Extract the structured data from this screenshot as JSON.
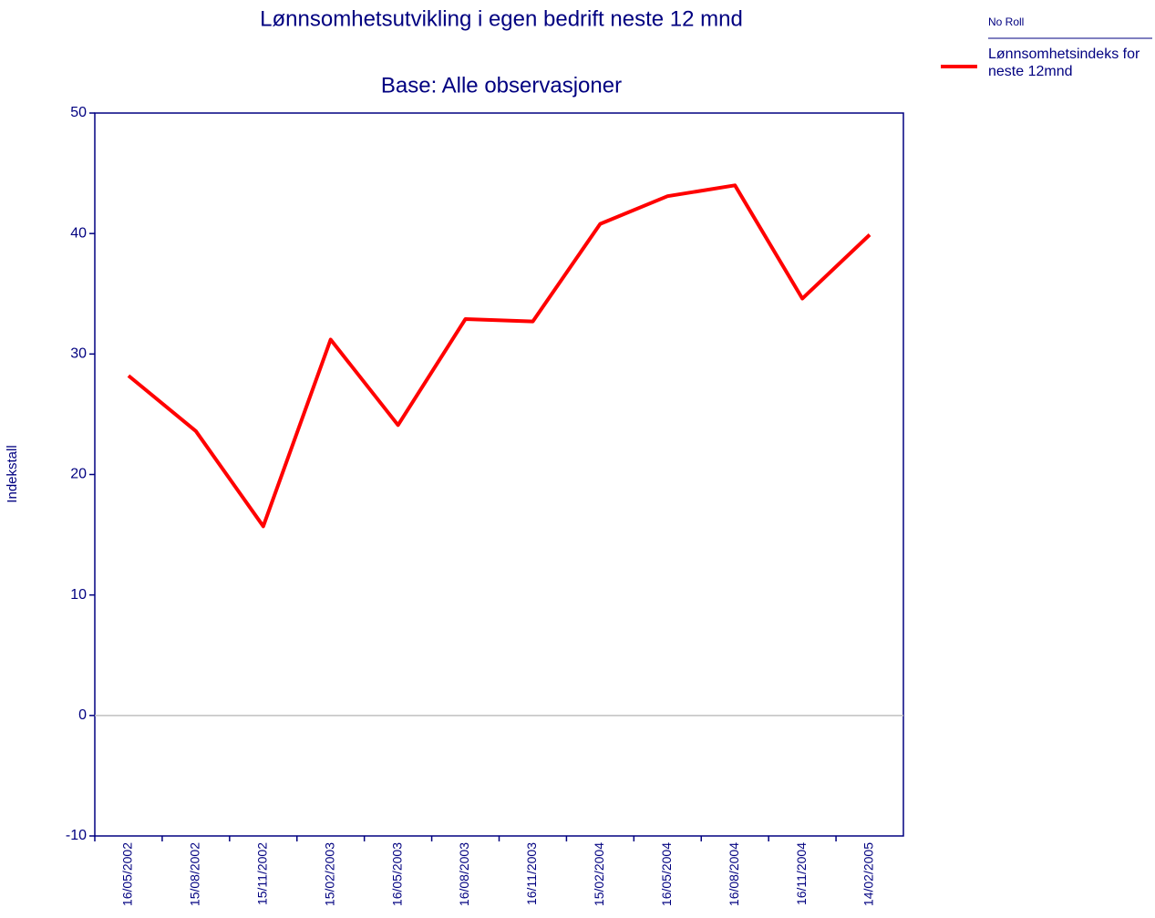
{
  "chart_data": {
    "type": "line",
    "title": "Lønnsomhetsutvikling i egen bedrift neste 12 mnd",
    "subtitle": "Base: Alle observasjoner",
    "y_label": "Indekstall",
    "legend_title": "No Roll",
    "categories": [
      "16/05/2002",
      "15/08/2002",
      "15/11/2002",
      "15/02/2003",
      "16/05/2003",
      "16/08/2003",
      "16/11/2003",
      "15/02/2004",
      "16/05/2004",
      "16/08/2004",
      "16/11/2004",
      "14/02/2005"
    ],
    "series": [
      {
        "name": "Lønnsomhetsindeks for neste 12mnd",
        "color": "#ff0000",
        "values": [
          28.2,
          23.6,
          15.7,
          31.2,
          24.1,
          32.9,
          32.7,
          40.8,
          43.1,
          44.0,
          34.6,
          39.9
        ]
      }
    ],
    "ylim": [
      -10,
      50
    ],
    "yticks": [
      -10,
      0,
      10,
      20,
      30,
      40,
      50
    ],
    "zero_line": true,
    "legend": "top-right"
  }
}
